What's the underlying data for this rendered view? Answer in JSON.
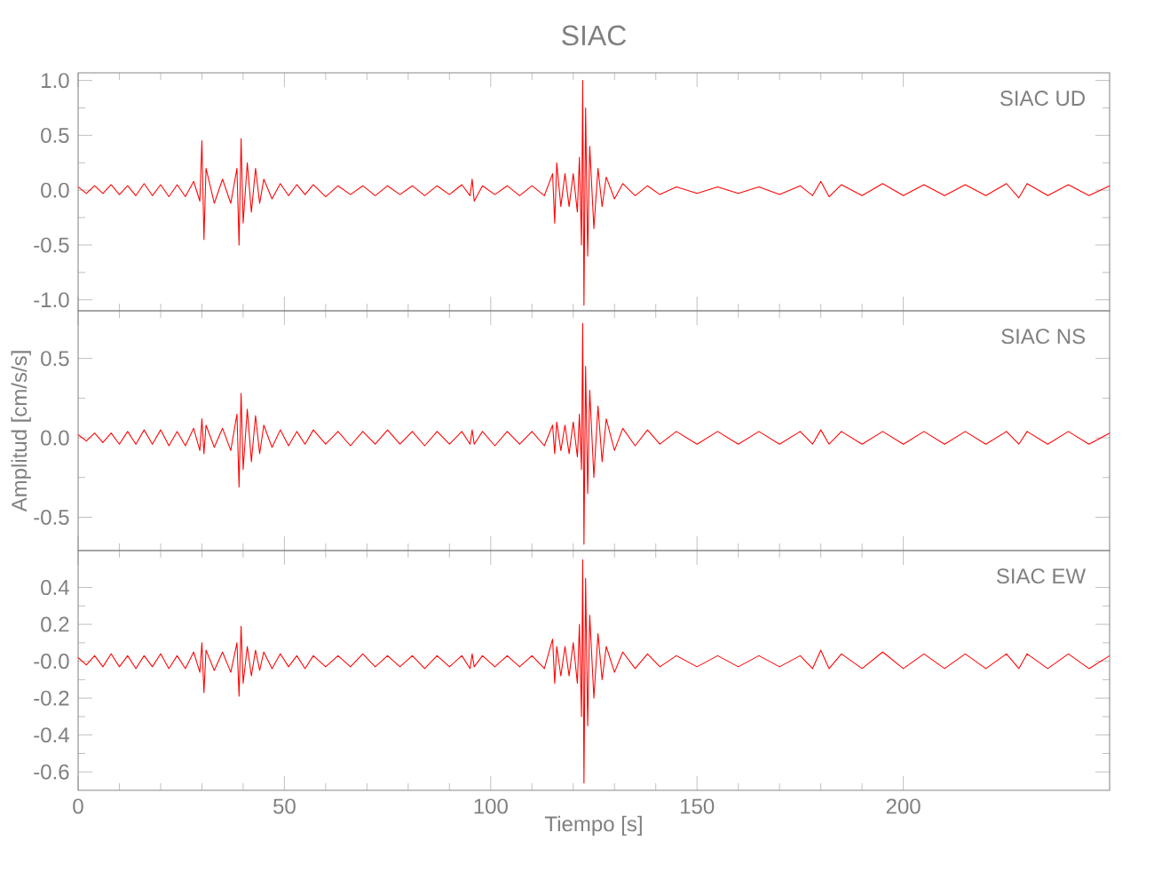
{
  "chart_data": [
    {
      "type": "line",
      "title": "SIAC",
      "annotations": [
        "SIAC   UD"
      ],
      "tick_labels": "y",
      "xlim": [
        0,
        250
      ],
      "xticks": [
        0,
        50,
        100,
        150,
        200
      ],
      "ylim": [
        -1.1,
        1.07
      ],
      "yticks": [
        {
          "value": 1,
          "label": "1.0"
        },
        {
          "value": 0.5,
          "label": "0.5"
        },
        {
          "value": 0,
          "label": "0.0"
        },
        {
          "value": -0.5,
          "label": "-0.5"
        },
        {
          "value": -1,
          "label": "-1.0"
        }
      ],
      "x": [
        0,
        2,
        4,
        6,
        8,
        10,
        12,
        14,
        16,
        18,
        20,
        22,
        24,
        26,
        28,
        29.5,
        30,
        30.5,
        31,
        33,
        35,
        37,
        38.5,
        39,
        39.5,
        40,
        41,
        42,
        43,
        44,
        45,
        47,
        49,
        51,
        53,
        55,
        57,
        60,
        63,
        66,
        69,
        72,
        75,
        78,
        81,
        84,
        87,
        90,
        93,
        95,
        95.5,
        96,
        98,
        101,
        104,
        107,
        110,
        113,
        115,
        115.5,
        116,
        117,
        118,
        119,
        120,
        121,
        121.5,
        122,
        122.3,
        122.6,
        123,
        123.5,
        124,
        125,
        126,
        127,
        128,
        130,
        132,
        135,
        138,
        141,
        145,
        150,
        155,
        160,
        165,
        170,
        175,
        178,
        180,
        182,
        185,
        190,
        195,
        200,
        205,
        210,
        215,
        220,
        225,
        228,
        230,
        235,
        240,
        245,
        250
      ],
      "series": [
        {
          "color": "#ff0000",
          "values": [
            0.03,
            -0.03,
            0.04,
            -0.03,
            0.05,
            -0.04,
            0.04,
            -0.05,
            0.06,
            -0.05,
            0.05,
            -0.06,
            0.05,
            -0.06,
            0.08,
            -0.1,
            0.45,
            -0.45,
            0.2,
            -0.12,
            0.1,
            -0.12,
            0.2,
            -0.5,
            0.47,
            -0.3,
            0.25,
            -0.2,
            0.2,
            -0.12,
            0.1,
            -0.08,
            0.06,
            -0.05,
            0.05,
            -0.04,
            0.05,
            -0.06,
            0.04,
            -0.04,
            0.04,
            -0.05,
            0.04,
            -0.04,
            0.04,
            -0.05,
            0.04,
            -0.04,
            0.05,
            -0.05,
            0.1,
            -0.1,
            0.04,
            -0.04,
            0.04,
            -0.05,
            0.04,
            -0.05,
            0.15,
            -0.3,
            0.25,
            -0.15,
            0.15,
            -0.15,
            0.15,
            -0.2,
            0.3,
            -0.5,
            1.0,
            -1.05,
            0.75,
            -0.6,
            0.4,
            -0.35,
            0.2,
            -0.15,
            0.12,
            -0.08,
            0.06,
            -0.05,
            0.04,
            -0.04,
            0.03,
            -0.03,
            0.03,
            -0.03,
            0.03,
            -0.04,
            0.04,
            -0.05,
            0.08,
            -0.06,
            0.05,
            -0.05,
            0.06,
            -0.05,
            0.05,
            -0.05,
            0.05,
            -0.05,
            0.06,
            -0.07,
            0.06,
            -0.05,
            0.05,
            -0.05,
            0.04
          ]
        }
      ]
    },
    {
      "type": "line",
      "ylabel": "Amplitud  [cm/s/s]",
      "annotations": [
        "SIAC   NS"
      ],
      "tick_labels": "y",
      "xlim": [
        0,
        250
      ],
      "xticks": [
        0,
        50,
        100,
        150,
        200
      ],
      "ylim": [
        -0.71,
        0.8
      ],
      "yticks": [
        {
          "value": 0.5,
          "label": "0.5"
        },
        {
          "value": 0,
          "label": "0.0"
        },
        {
          "value": -0.5,
          "label": "-0.5"
        }
      ],
      "x": [
        0,
        2,
        4,
        6,
        8,
        10,
        12,
        14,
        16,
        18,
        20,
        22,
        24,
        26,
        28,
        29.5,
        30,
        30.5,
        31,
        33,
        35,
        37,
        38.5,
        39,
        39.5,
        40,
        41,
        42,
        43,
        44,
        45,
        47,
        49,
        51,
        53,
        55,
        57,
        60,
        63,
        66,
        69,
        72,
        75,
        78,
        81,
        84,
        87,
        90,
        93,
        95,
        95.5,
        96,
        98,
        101,
        104,
        107,
        110,
        113,
        115,
        115.5,
        116,
        117,
        118,
        119,
        120,
        121,
        121.5,
        122,
        122.3,
        122.6,
        123,
        123.5,
        124,
        125,
        126,
        127,
        128,
        130,
        132,
        135,
        138,
        141,
        145,
        150,
        155,
        160,
        165,
        170,
        175,
        178,
        180,
        182,
        185,
        190,
        195,
        200,
        205,
        210,
        215,
        220,
        225,
        228,
        230,
        235,
        240,
        245,
        250
      ],
      "series": [
        {
          "color": "#ff0000",
          "values": [
            0.02,
            -0.02,
            0.03,
            -0.03,
            0.03,
            -0.04,
            0.04,
            -0.04,
            0.05,
            -0.04,
            0.05,
            -0.05,
            0.04,
            -0.05,
            0.06,
            -0.08,
            0.12,
            -0.1,
            0.08,
            -0.06,
            0.06,
            -0.08,
            0.15,
            -0.31,
            0.28,
            -0.2,
            0.18,
            -0.15,
            0.14,
            -0.1,
            0.08,
            -0.06,
            0.05,
            -0.05,
            0.04,
            -0.04,
            0.05,
            -0.04,
            0.04,
            -0.05,
            0.04,
            -0.04,
            0.05,
            -0.04,
            0.04,
            -0.05,
            0.04,
            -0.04,
            0.04,
            -0.04,
            0.05,
            -0.04,
            0.04,
            -0.05,
            0.04,
            -0.04,
            0.04,
            -0.05,
            0.08,
            -0.1,
            0.1,
            -0.08,
            0.08,
            -0.1,
            0.1,
            -0.12,
            0.15,
            -0.2,
            0.72,
            -0.67,
            0.45,
            -0.35,
            0.3,
            -0.25,
            0.2,
            -0.15,
            0.12,
            -0.08,
            0.06,
            -0.05,
            0.05,
            -0.04,
            0.04,
            -0.04,
            0.04,
            -0.04,
            0.04,
            -0.04,
            0.04,
            -0.04,
            0.05,
            -0.04,
            0.04,
            -0.04,
            0.04,
            -0.04,
            0.04,
            -0.04,
            0.04,
            -0.04,
            0.04,
            -0.04,
            0.04,
            -0.04,
            0.04,
            -0.04,
            0.03
          ]
        }
      ]
    },
    {
      "type": "line",
      "xlabel": "Tiempo  [s]",
      "annotations": [
        "SIAC   EW"
      ],
      "xlim": [
        0,
        250
      ],
      "xticks": [
        0,
        50,
        100,
        150,
        200
      ],
      "ylim": [
        -0.7,
        0.6
      ],
      "yticks": [
        {
          "value": 0.4,
          "label": "0.4"
        },
        {
          "value": 0.2,
          "label": "0.2"
        },
        {
          "value": 0,
          "label": "-0.0"
        },
        {
          "value": -0.2,
          "label": "-0.2"
        },
        {
          "value": -0.4,
          "label": "-0.4"
        },
        {
          "value": -0.6,
          "label": "-0.6"
        }
      ],
      "x": [
        0,
        2,
        4,
        6,
        8,
        10,
        12,
        14,
        16,
        18,
        20,
        22,
        24,
        26,
        28,
        29.5,
        30,
        30.5,
        31,
        33,
        35,
        37,
        38.5,
        39,
        39.5,
        40,
        41,
        42,
        43,
        44,
        45,
        47,
        49,
        51,
        53,
        55,
        57,
        60,
        63,
        66,
        69,
        72,
        75,
        78,
        81,
        84,
        87,
        90,
        93,
        95,
        95.5,
        96,
        98,
        101,
        104,
        107,
        110,
        113,
        115,
        115.5,
        116,
        117,
        118,
        119,
        120,
        121,
        121.5,
        122,
        122.3,
        122.6,
        123,
        123.5,
        124,
        125,
        126,
        127,
        128,
        130,
        132,
        135,
        138,
        141,
        145,
        150,
        155,
        160,
        165,
        170,
        175,
        178,
        180,
        182,
        185,
        190,
        195,
        200,
        205,
        210,
        215,
        220,
        225,
        228,
        230,
        235,
        240,
        245,
        250
      ],
      "series": [
        {
          "color": "#ff0000",
          "values": [
            0.02,
            -0.02,
            0.03,
            -0.03,
            0.04,
            -0.03,
            0.03,
            -0.04,
            0.03,
            -0.03,
            0.04,
            -0.04,
            0.03,
            -0.04,
            0.05,
            -0.06,
            0.1,
            -0.17,
            0.06,
            -0.05,
            0.05,
            -0.06,
            0.1,
            -0.19,
            0.19,
            -0.12,
            0.08,
            -0.08,
            0.06,
            -0.05,
            0.05,
            -0.04,
            0.04,
            -0.03,
            0.03,
            -0.04,
            0.03,
            -0.03,
            0.03,
            -0.03,
            0.04,
            -0.03,
            0.03,
            -0.03,
            0.03,
            -0.04,
            0.03,
            -0.03,
            0.03,
            -0.04,
            0.04,
            -0.03,
            0.03,
            -0.03,
            0.03,
            -0.03,
            0.03,
            -0.04,
            0.12,
            -0.12,
            0.08,
            -0.08,
            0.08,
            -0.08,
            0.1,
            -0.12,
            0.2,
            -0.3,
            0.55,
            -0.66,
            0.45,
            -0.35,
            0.25,
            -0.2,
            0.15,
            -0.1,
            0.08,
            -0.06,
            0.05,
            -0.04,
            0.04,
            -0.03,
            0.03,
            -0.03,
            0.03,
            -0.03,
            0.03,
            -0.03,
            0.03,
            -0.04,
            0.06,
            -0.04,
            0.04,
            -0.04,
            0.05,
            -0.04,
            0.04,
            -0.04,
            0.04,
            -0.04,
            0.04,
            -0.04,
            0.04,
            -0.04,
            0.04,
            -0.04,
            0.03
          ]
        }
      ]
    }
  ]
}
